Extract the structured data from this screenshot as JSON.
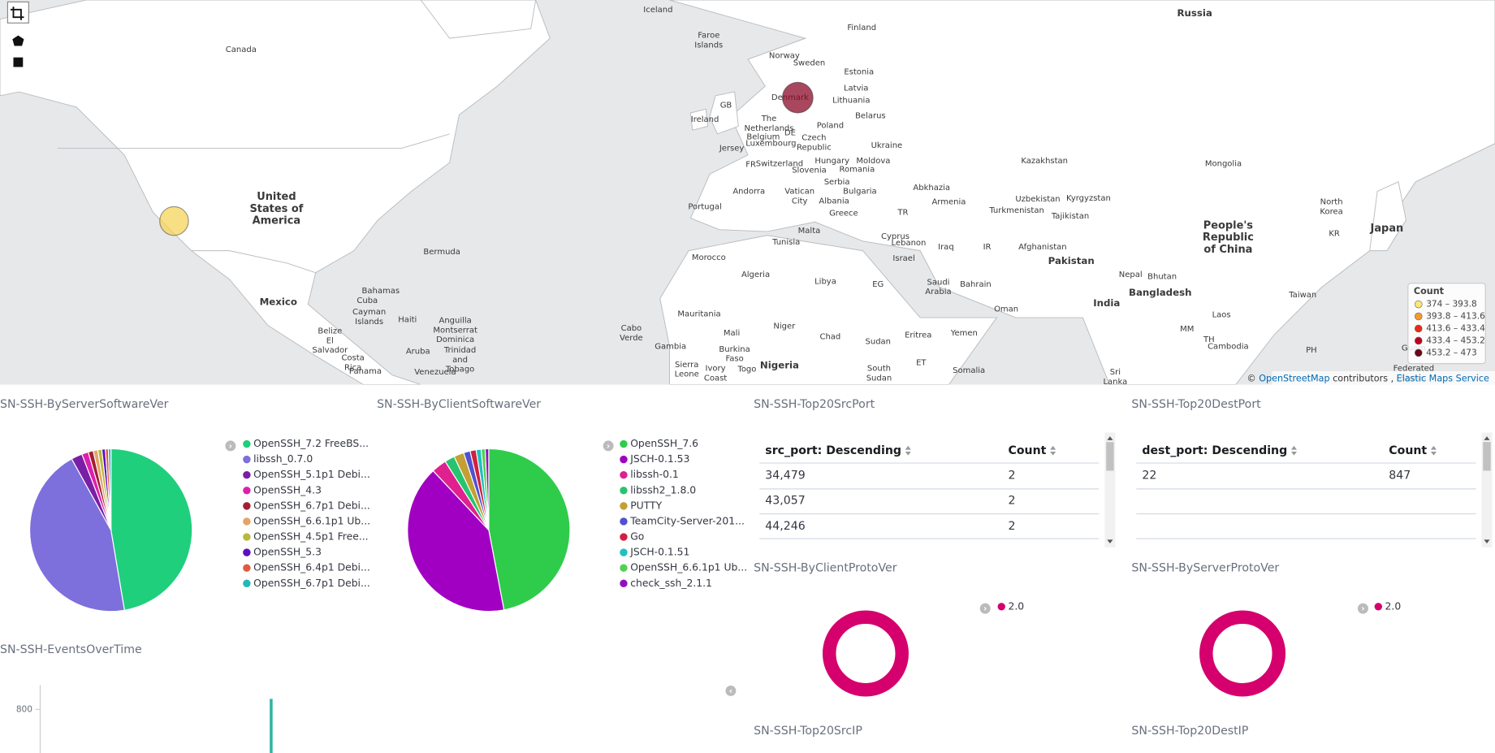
{
  "map": {
    "labels": [
      "Iceland",
      "Russia",
      "Finland",
      "Canada",
      "Faroe Islands",
      "Norway",
      "Sweden",
      "Estonia",
      "Latvia",
      "Denmark",
      "Lithuania",
      "GB",
      "Belarus",
      "Ireland",
      "The Netherlands",
      "Poland",
      "DE",
      "Belgium",
      "Luxembourg",
      "Czech Republic",
      "Ukraine",
      "Jersey",
      "Hungary",
      "Moldova",
      "Kazakhstan",
      "Mongolia",
      "FR",
      "Switzerland",
      "Romania",
      "Slovenia",
      "Serbia",
      "Abkhazia",
      "Bulgaria",
      "Andorra",
      "Vatican City",
      "Uzbekistan",
      "Kyrgyzstan",
      "United States of America",
      "Albania",
      "Armenia",
      "North Korea",
      "Portugal",
      "Turkmenistan",
      "TR",
      "Greece",
      "Tajikistan",
      "Japan",
      "Malta",
      "Cyprus",
      "People's Republic of China",
      "KR",
      "Tunisia",
      "Lebanon",
      "Iraq",
      "IR",
      "Afghanistan",
      "Bermuda",
      "Morocco",
      "Israel",
      "Pakistan",
      "Algeria",
      "Nepal",
      "Bhutan",
      "Libya",
      "EG",
      "Bahrain",
      "Saudi Arabia",
      "Bahamas",
      "Bangladesh",
      "Taiwan",
      "Cuba",
      "Mexico",
      "India",
      "Oman",
      "Mauritania",
      "Laos",
      "Cayman Islands",
      "Haiti",
      "Niger",
      "Anguilla Montserrat Dominica",
      "MM",
      "Mali",
      "Belize",
      "Cabo Verde",
      "Eritrea",
      "Yemen",
      "Chad",
      "Sudan",
      "TH",
      "El Salvador",
      "Cambodia",
      "Gambia",
      "Guam",
      "PH",
      "Aruba",
      "Burkina Faso",
      "Trinidad and Tobago",
      "Costa Rica",
      "Nigeria",
      "ET",
      "Sierra Leone",
      "Ivory Coast",
      "Togo",
      "South Sudan",
      "Somalia",
      "Panama",
      "Venezuela",
      "Sri Lanka",
      "Federated States"
    ],
    "points": [
      {
        "count": 374,
        "color": "#f7d45a"
      },
      {
        "count": 473,
        "color": "#8c0a28"
      }
    ],
    "legend": {
      "title": "Count",
      "items": [
        {
          "label": "374 – 393.8",
          "color": "#ffe47a"
        },
        {
          "label": "393.8 – 413.6",
          "color": "#f59a2c"
        },
        {
          "label": "413.6 – 433.4",
          "color": "#ea2a18"
        },
        {
          "label": "433.4 – 453.2",
          "color": "#c0001a"
        },
        {
          "label": "453.2 – 473",
          "color": "#6e0416"
        }
      ]
    },
    "attribution": {
      "symbol": "©",
      "osm": "OpenStreetMap",
      "text": "contributors ,",
      "ems": "Elastic Maps Service"
    }
  },
  "panels": {
    "server_software": {
      "title": "SN-SSH-ByServerSoftwareVer",
      "type": "pie",
      "categories": [
        "OpenSSH_7.2 FreeBS...",
        "libssh_0.7.0",
        "OpenSSH_5.1p1 Debi...",
        "OpenSSH_4.3",
        "OpenSSH_6.7p1 Debi...",
        "OpenSSH_6.6.1p1 Ub...",
        "OpenSSH_4.5p1 Free...",
        "OpenSSH_5.3",
        "OpenSSH_6.4p1 Debi...",
        "OpenSSH_6.7p1 Debi..."
      ],
      "values": [
        47.2,
        44.5,
        2.2,
        1.3,
        1,
        0.9,
        0.8,
        0.7,
        0.6,
        0.5
      ],
      "colors": [
        "#1fcf7c",
        "#7d6fdc",
        "#7a1ea6",
        "#dd1fae",
        "#a31f34",
        "#e3a468",
        "#b8b83c",
        "#5a10c0",
        "#e05a40",
        "#20b8b8"
      ]
    },
    "client_software": {
      "title": "SN-SSH-ByClientSoftwareVer",
      "type": "pie",
      "categories": [
        "OpenSSH_7.6",
        "JSCH-0.1.53",
        "libssh-0.1",
        "libssh2_1.8.0",
        "PUTTY",
        "TeamCity-Server-201...",
        "Go",
        "JSCH-0.1.51",
        "OpenSSH_6.6.1p1 Ub...",
        "check_ssh_2.1.1"
      ],
      "values": [
        47,
        41,
        3,
        2,
        2,
        1.3,
        1.2,
        1,
        0.8,
        0.7
      ],
      "colors": [
        "#2ecc4a",
        "#a100c2",
        "#e0208f",
        "#26c46e",
        "#c2a034",
        "#5050d0",
        "#d02040",
        "#20c0c0",
        "#52d052",
        "#9010c0"
      ]
    },
    "src_port": {
      "title": "SN-SSH-Top20SrcPort",
      "columns": [
        "src_port: Descending",
        "Count"
      ],
      "rows": [
        [
          "34,479",
          2
        ],
        [
          "43,057",
          2
        ],
        [
          "44,246",
          2
        ]
      ]
    },
    "dest_port": {
      "title": "SN-SSH-Top20DestPort",
      "columns": [
        "dest_port: Descending",
        "Count"
      ],
      "rows": [
        [
          22,
          847
        ]
      ]
    },
    "client_proto": {
      "title": "SN-SSH-ByClientProtoVer",
      "type": "donut",
      "categories": [
        "2.0"
      ],
      "values": [
        100
      ],
      "colors": [
        "#d5006d"
      ]
    },
    "server_proto": {
      "title": "SN-SSH-ByServerProtoVer",
      "type": "donut",
      "categories": [
        "2.0"
      ],
      "values": [
        100
      ],
      "colors": [
        "#d5006d"
      ]
    },
    "events": {
      "title": "SN-SSH-EventsOverTime",
      "type": "bar",
      "values": [
        847
      ],
      "color": "#2fb3a5",
      "ylim": [
        0,
        900
      ],
      "yticks": [
        800
      ]
    },
    "src_ip": {
      "title": "SN-SSH-Top20SrcIP"
    },
    "dest_ip": {
      "title": "SN-SSH-Top20DestIP"
    }
  }
}
